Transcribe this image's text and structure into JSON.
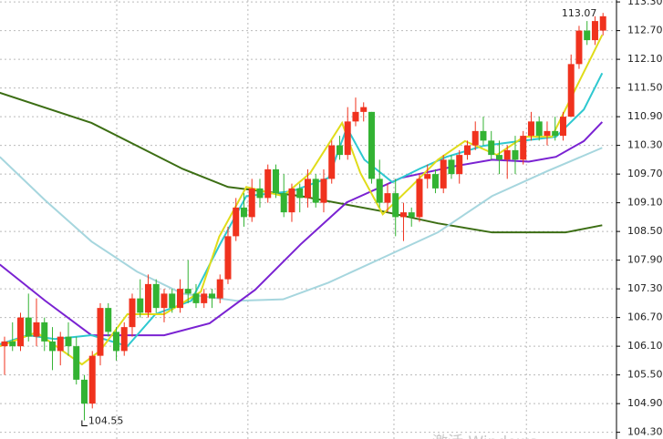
{
  "chart_data": {
    "type": "candlestick",
    "up_color": "#f0321e",
    "down_color": "#33b333",
    "open": [
      106.1,
      106.2,
      106.1,
      106.7,
      106.3,
      106.6,
      106.2,
      106.0,
      106.3,
      106.1,
      105.4,
      104.9,
      105.9,
      106.9,
      106.4,
      106.0,
      106.5,
      107.1,
      106.8,
      107.4,
      106.9,
      107.2,
      106.9,
      107.3,
      107.2,
      107.0,
      107.2,
      107.1,
      107.5,
      108.4,
      109.0,
      108.8,
      109.4,
      109.2,
      109.8,
      109.3,
      108.9,
      109.4,
      109.2,
      109.6,
      109.1,
      109.6,
      110.3,
      110.1,
      110.8,
      111.0,
      111.0,
      109.6,
      109.1,
      109.3,
      108.8,
      108.9,
      108.8,
      109.6,
      109.7,
      109.4,
      110.0,
      109.7,
      110.1,
      110.3,
      110.6,
      110.4,
      110.1,
      110.0,
      110.2,
      110.0,
      110.5,
      110.8,
      110.5,
      110.6,
      110.5,
      110.9,
      112.0,
      112.7,
      112.5,
      112.7
    ],
    "high": [
      106.3,
      106.6,
      106.8,
      107.2,
      107.1,
      106.7,
      106.5,
      106.4,
      106.6,
      106.3,
      105.5,
      106.0,
      107.0,
      107.0,
      106.5,
      106.6,
      107.2,
      107.5,
      107.6,
      107.5,
      107.3,
      107.3,
      107.5,
      107.9,
      107.4,
      107.3,
      107.3,
      107.6,
      108.6,
      109.2,
      109.3,
      109.6,
      109.6,
      109.9,
      109.9,
      109.7,
      109.5,
      109.5,
      109.8,
      109.7,
      109.8,
      110.4,
      110.5,
      111.1,
      111.3,
      111.2,
      111.0,
      110.0,
      109.5,
      109.6,
      109.1,
      109.0,
      109.7,
      109.9,
      109.8,
      110.1,
      110.1,
      110.2,
      110.4,
      110.8,
      110.9,
      110.6,
      110.4,
      110.3,
      110.5,
      110.6,
      111.0,
      110.9,
      110.8,
      110.9,
      111.0,
      112.2,
      112.8,
      112.9,
      113.0,
      113.07
    ],
    "low": [
      105.5,
      106.0,
      106.0,
      106.2,
      106.1,
      106.0,
      105.6,
      105.7,
      105.9,
      105.3,
      104.55,
      104.8,
      105.7,
      106.3,
      105.8,
      105.9,
      106.3,
      106.7,
      106.7,
      106.8,
      106.6,
      106.8,
      106.8,
      107.0,
      106.9,
      106.9,
      106.9,
      107.0,
      107.4,
      108.3,
      108.6,
      108.7,
      109.0,
      109.1,
      109.2,
      108.8,
      108.7,
      108.9,
      109.0,
      109.0,
      108.9,
      109.5,
      110.0,
      110.0,
      110.7,
      110.8,
      109.5,
      109.0,
      108.9,
      108.4,
      108.3,
      108.6,
      108.7,
      109.4,
      109.3,
      109.3,
      109.6,
      109.5,
      110.0,
      110.2,
      110.3,
      110.0,
      109.7,
      109.6,
      109.7,
      109.9,
      110.4,
      110.4,
      110.3,
      110.4,
      110.4,
      110.9,
      111.9,
      112.4,
      112.4,
      112.6
    ],
    "close": [
      106.2,
      106.1,
      106.7,
      106.3,
      106.6,
      106.2,
      106.0,
      106.3,
      106.1,
      105.4,
      104.9,
      105.9,
      106.9,
      106.4,
      106.0,
      106.5,
      107.1,
      106.8,
      107.4,
      106.9,
      107.2,
      106.9,
      107.3,
      107.2,
      107.0,
      107.2,
      107.1,
      107.5,
      108.4,
      109.0,
      108.8,
      109.4,
      109.2,
      109.8,
      109.3,
      108.9,
      109.4,
      109.2,
      109.6,
      109.1,
      109.6,
      110.3,
      110.1,
      110.8,
      111.0,
      111.1,
      109.6,
      109.1,
      109.3,
      108.8,
      108.9,
      108.8,
      109.6,
      109.7,
      109.4,
      110.0,
      109.7,
      110.1,
      110.3,
      110.6,
      110.4,
      110.1,
      110.0,
      110.2,
      110.0,
      110.5,
      110.8,
      110.5,
      110.6,
      110.5,
      110.9,
      112.0,
      112.7,
      112.5,
      112.9,
      113.0
    ],
    "lines": [
      {
        "color": "#3c6e14",
        "x": [
          -0.6,
          10.9,
          22.3,
          28,
          37.1,
          47.4,
          54.3,
          61.1,
          70.3,
          74.9
        ],
        "values": [
          111.4,
          110.77,
          109.81,
          109.43,
          109.24,
          108.92,
          108.67,
          108.48,
          108.48,
          108.63
        ]
      },
      {
        "color": "#a6d6de",
        "x": [
          -0.6,
          5.1,
          10.9,
          16.6,
          22.3,
          29.1,
          34.9,
          40.6,
          47.4,
          54.3,
          61.1,
          68,
          74.9
        ],
        "values": [
          110.06,
          109.15,
          108.29,
          107.66,
          107.2,
          107.05,
          107.08,
          107.43,
          107.95,
          108.48,
          109.24,
          109.76,
          110.25
        ]
      },
      {
        "color": "#7a22d2",
        "x": [
          -0.6,
          5.1,
          10.9,
          20,
          25.7,
          31.4,
          37.1,
          42.9,
          49.7,
          56.6,
          61.1,
          65.7,
          69.1,
          72.6,
          74.9
        ],
        "values": [
          107.81,
          107.05,
          106.33,
          106.33,
          106.58,
          107.28,
          108.23,
          109.11,
          109.62,
          109.87,
          110.0,
          109.96,
          110.06,
          110.39,
          110.79
        ]
      },
      {
        "color": "#2ec8d0",
        "x": [
          -0.6,
          2.9,
          6.3,
          10.9,
          15.4,
          18.9,
          23.4,
          26.9,
          30.3,
          36,
          40.6,
          42.9,
          45.1,
          48.6,
          52,
          55.4,
          60,
          64.6,
          69.1,
          72.6,
          74.9
        ],
        "values": [
          106.14,
          106.33,
          106.25,
          106.33,
          106.1,
          106.77,
          107.05,
          108.2,
          109.24,
          109.34,
          109.62,
          110.67,
          110.0,
          109.53,
          109.81,
          110.06,
          110.29,
          110.39,
          110.48,
          111.05,
          111.81
        ]
      },
      {
        "color": "#e0dc1a",
        "x": [
          -0.6,
          4,
          9.7,
          12,
          15.4,
          20,
          24.6,
          26.9,
          30.3,
          34.9,
          38.3,
          42.3,
          44.6,
          47.4,
          50.9,
          54.3,
          57.7,
          61.7,
          65.1,
          68.6,
          71.4,
          73.7,
          74.9
        ],
        "values": [
          106.1,
          106.39,
          105.72,
          106.01,
          106.77,
          106.77,
          107.24,
          108.39,
          109.43,
          109.24,
          109.72,
          110.77,
          109.72,
          108.86,
          109.43,
          110.0,
          110.39,
          110.1,
          110.48,
          110.48,
          111.43,
          112.2,
          112.61
        ]
      }
    ],
    "annotations": [
      {
        "text": "113.07",
        "x": 74.9,
        "y": 113.07
      },
      {
        "text": "104.55",
        "x": 9.7,
        "y": 104.55
      }
    ],
    "watermark": "激活 Windows",
    "xlim": [
      -0.57,
      76.69
    ],
    "xticks": [
      14.06,
      30.5,
      48.8,
      65.4
    ],
    "ylim": [
      104.16,
      113.34
    ],
    "grid": true,
    "yticks": [
      {
        "value": 113.3,
        "label": "113.30"
      },
      {
        "value": 112.7,
        "label": "112.70"
      },
      {
        "value": 112.1,
        "label": "112.10"
      },
      {
        "value": 111.5,
        "label": "111.50"
      },
      {
        "value": 110.9,
        "label": "110.90"
      },
      {
        "value": 110.3,
        "label": "110.30"
      },
      {
        "value": 109.7,
        "label": "109.70"
      },
      {
        "value": 109.1,
        "label": "109.10"
      },
      {
        "value": 108.5,
        "label": "108.50"
      },
      {
        "value": 107.9,
        "label": "107.90"
      },
      {
        "value": 107.3,
        "label": "107.30"
      },
      {
        "value": 106.7,
        "label": "106.70"
      },
      {
        "value": 106.1,
        "label": "106.10"
      },
      {
        "value": 105.5,
        "label": "105.50"
      },
      {
        "value": 104.9,
        "label": "104.90"
      },
      {
        "value": 104.3,
        "label": "104.30"
      }
    ]
  }
}
